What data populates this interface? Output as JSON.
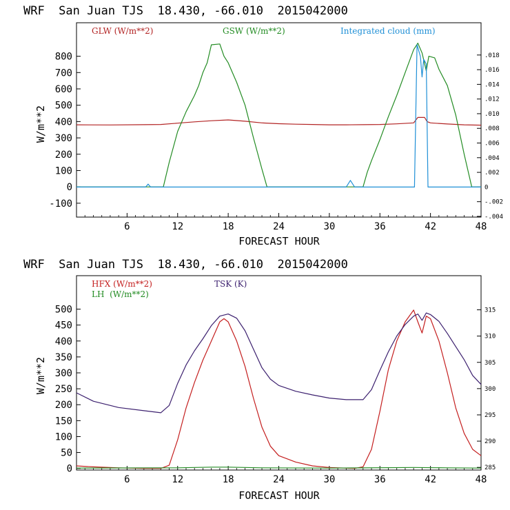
{
  "charts": [
    {
      "title": "WRF  San Juan TJS  18.430, -66.010  2015042000",
      "ylabel": "W/m**2",
      "xlabel": "FORECAST HOUR",
      "legend": {
        "glw": "GLW (W/m**2)",
        "gsw": "GSW (W/m**2)",
        "cloud": "Integrated cloud (mm)"
      }
    },
    {
      "title": "WRF  San Juan TJS  18.430, -66.010  2015042000",
      "ylabel": "W/m**2",
      "xlabel": "FORECAST HOUR",
      "legend": {
        "hfx": "HFX (W/m**2)",
        "lh": "LH  (W/m**2)",
        "tsk": "TSK (K)"
      }
    }
  ],
  "chart_data": [
    {
      "type": "line",
      "title": "WRF  San Juan TJS  18.430, -66.010  2015042000",
      "xlabel": "FORECAST HOUR",
      "ylabel": "W/m**2",
      "xlim": [
        0,
        48
      ],
      "xticks": [
        "6",
        "12",
        "18",
        "24",
        "30",
        "36",
        "42",
        "48"
      ],
      "ylim": [
        -185,
        1005
      ],
      "yticks": [
        "-100",
        "0",
        "100",
        "200",
        "300",
        "400",
        "500",
        "600",
        "700",
        "800"
      ],
      "y2lim": [
        -0.0041,
        0.0224
      ],
      "y2ticks": [
        ".018",
        ".016",
        ".014",
        ".012",
        ".010",
        ".008",
        ".006",
        ".004",
        ".002",
        "0",
        "-.002",
        "-.004"
      ],
      "series": [
        {
          "name": "GLW (W/m**2)",
          "color": "#b22222",
          "axis": "left",
          "points": [
            [
              0,
              380
            ],
            [
              4,
              379
            ],
            [
              8,
              381
            ],
            [
              10,
              382
            ],
            [
              12,
              390
            ],
            [
              14,
              398
            ],
            [
              16,
              405
            ],
            [
              18,
              410
            ],
            [
              20,
              402
            ],
            [
              22,
              392
            ],
            [
              24,
              387
            ],
            [
              26,
              384
            ],
            [
              28,
              382
            ],
            [
              30,
              380
            ],
            [
              32,
              380
            ],
            [
              34,
              381
            ],
            [
              36,
              382
            ],
            [
              38,
              386
            ],
            [
              40,
              392
            ],
            [
              40.5,
              425
            ],
            [
              41.3,
              425
            ],
            [
              41.6,
              400
            ],
            [
              42,
              392
            ],
            [
              44,
              385
            ],
            [
              46,
              380
            ],
            [
              48,
              378
            ]
          ]
        },
        {
          "name": "GSW (W/m**2)",
          "color": "#228b22",
          "axis": "left",
          "points": [
            [
              0,
              0
            ],
            [
              10.3,
              0
            ],
            [
              11,
              150
            ],
            [
              12,
              340
            ],
            [
              13,
              460
            ],
            [
              14,
              560
            ],
            [
              14.5,
              620
            ],
            [
              15,
              700
            ],
            [
              15.5,
              760
            ],
            [
              16,
              870
            ],
            [
              17,
              875
            ],
            [
              17.5,
              800
            ],
            [
              18,
              760
            ],
            [
              19,
              640
            ],
            [
              20,
              500
            ],
            [
              21,
              300
            ],
            [
              22,
              110
            ],
            [
              22.6,
              0
            ],
            [
              34,
              0
            ],
            [
              34.5,
              90
            ],
            [
              35,
              160
            ],
            [
              36,
              290
            ],
            [
              37,
              430
            ],
            [
              38,
              560
            ],
            [
              39,
              700
            ],
            [
              40,
              840
            ],
            [
              40.5,
              880
            ],
            [
              41,
              820
            ],
            [
              41.5,
              710
            ],
            [
              41.8,
              800
            ],
            [
              42.5,
              790
            ],
            [
              43,
              720
            ],
            [
              44,
              620
            ],
            [
              45,
              440
            ],
            [
              46,
              200
            ],
            [
              46.9,
              0
            ],
            [
              48,
              0
            ]
          ]
        },
        {
          "name": "Integrated cloud (mm)",
          "color": "#1e8fd6",
          "axis": "right",
          "points": [
            [
              0,
              0
            ],
            [
              8.2,
              0
            ],
            [
              8.5,
              0.0004
            ],
            [
              8.8,
              0
            ],
            [
              32,
              0
            ],
            [
              32.5,
              0.0009
            ],
            [
              33,
              0
            ],
            [
              40.1,
              0
            ],
            [
              40.4,
              0.0194
            ],
            [
              40.8,
              0.0178
            ],
            [
              41,
              0.015
            ],
            [
              41.2,
              0.0174
            ],
            [
              41.5,
              0.0168
            ],
            [
              41.7,
              0
            ],
            [
              48,
              0
            ]
          ]
        }
      ]
    },
    {
      "type": "line",
      "title": "WRF  San Juan TJS  18.430, -66.010  2015042000",
      "xlabel": "FORECAST HOUR",
      "ylabel": "W/m**2",
      "xlim": [
        0,
        48
      ],
      "xticks": [
        "6",
        "12",
        "18",
        "24",
        "30",
        "36",
        "42",
        "48"
      ],
      "ylim": [
        -5,
        605
      ],
      "yticks": [
        "0",
        "50",
        "100",
        "150",
        "200",
        "250",
        "300",
        "350",
        "400",
        "450",
        "500"
      ],
      "y2lim": [
        284.5,
        321.5
      ],
      "y2ticks": [
        "315",
        "310",
        "305",
        "300",
        "295",
        "290",
        "285"
      ],
      "series": [
        {
          "name": "HFX (W/m**2)",
          "color": "#c41e1e",
          "axis": "left",
          "points": [
            [
              0,
              8
            ],
            [
              2,
              5
            ],
            [
              5,
              2
            ],
            [
              8,
              0
            ],
            [
              10,
              0
            ],
            [
              11,
              10
            ],
            [
              12,
              90
            ],
            [
              13,
              190
            ],
            [
              14,
              270
            ],
            [
              15,
              340
            ],
            [
              16,
              400
            ],
            [
              17,
              460
            ],
            [
              17.5,
              470
            ],
            [
              18,
              460
            ],
            [
              19,
              400
            ],
            [
              20,
              320
            ],
            [
              21,
              220
            ],
            [
              22,
              130
            ],
            [
              23,
              70
            ],
            [
              24,
              40
            ],
            [
              26,
              20
            ],
            [
              28,
              8
            ],
            [
              30,
              3
            ],
            [
              33,
              0
            ],
            [
              34,
              5
            ],
            [
              35,
              60
            ],
            [
              36,
              180
            ],
            [
              37,
              310
            ],
            [
              38,
              400
            ],
            [
              39,
              460
            ],
            [
              40,
              497
            ],
            [
              40.5,
              460
            ],
            [
              41,
              425
            ],
            [
              41.5,
              478
            ],
            [
              42,
              470
            ],
            [
              43,
              400
            ],
            [
              44,
              300
            ],
            [
              45,
              190
            ],
            [
              46,
              110
            ],
            [
              47,
              60
            ],
            [
              48,
              40
            ]
          ]
        },
        {
          "name": "LH  (W/m**2)",
          "color": "#228b22",
          "axis": "left",
          "points": [
            [
              0,
              1
            ],
            [
              12,
              2
            ],
            [
              16,
              4
            ],
            [
              18,
              4
            ],
            [
              22,
              2
            ],
            [
              30,
              1
            ],
            [
              40,
              3
            ],
            [
              44,
              2
            ],
            [
              48,
              1
            ]
          ]
        },
        {
          "name": "TSK (K)",
          "color": "#3b1f6e",
          "axis": "right",
          "points": [
            [
              0,
              299.2
            ],
            [
              2,
              297.6
            ],
            [
              5,
              296.4
            ],
            [
              8,
              295.8
            ],
            [
              10,
              295.4
            ],
            [
              11,
              296.8
            ],
            [
              12,
              301
            ],
            [
              13,
              304.5
            ],
            [
              14,
              307.2
            ],
            [
              15,
              309.5
            ],
            [
              16,
              312
            ],
            [
              17,
              313.8
            ],
            [
              18,
              314.2
            ],
            [
              19,
              313.4
            ],
            [
              20,
              311
            ],
            [
              21,
              307.5
            ],
            [
              22,
              304
            ],
            [
              23,
              301.8
            ],
            [
              24,
              300.6
            ],
            [
              26,
              299.5
            ],
            [
              28,
              298.8
            ],
            [
              30,
              298.2
            ],
            [
              32,
              297.9
            ],
            [
              34,
              297.9
            ],
            [
              35,
              299.8
            ],
            [
              36,
              303.5
            ],
            [
              37,
              307
            ],
            [
              38,
              310
            ],
            [
              39,
              312.2
            ],
            [
              40,
              313.8
            ],
            [
              40.5,
              314.2
            ],
            [
              41,
              313
            ],
            [
              41.5,
              314.4
            ],
            [
              42,
              314.1
            ],
            [
              43,
              312.8
            ],
            [
              44,
              310.5
            ],
            [
              45,
              308
            ],
            [
              46,
              305.5
            ],
            [
              47,
              302.5
            ],
            [
              48,
              300.8
            ]
          ]
        }
      ]
    }
  ]
}
